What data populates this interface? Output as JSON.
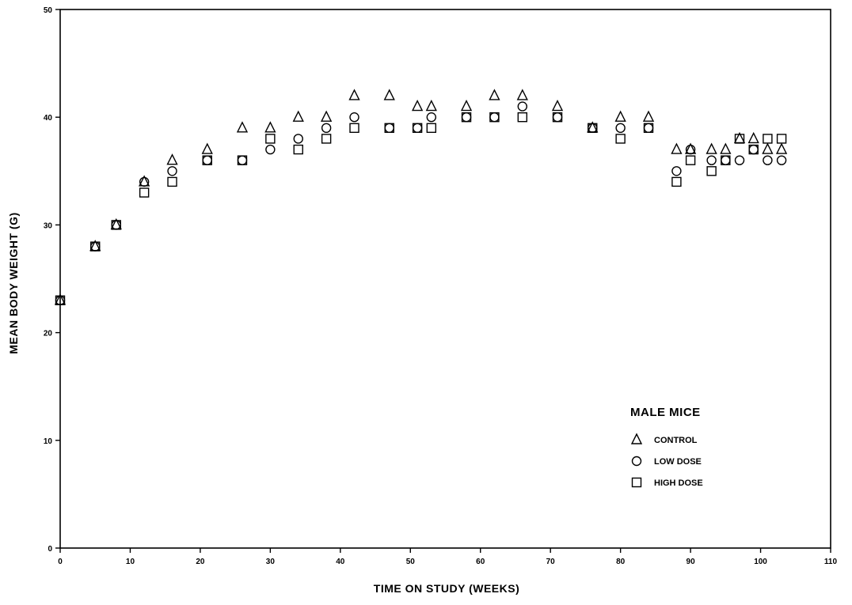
{
  "chart_data": {
    "type": "scatter",
    "title": "",
    "xlabel": "TIME ON STUDY (WEEKS)",
    "ylabel": "MEAN BODY WEIGHT (G)",
    "xlim": [
      0,
      110
    ],
    "ylim": [
      0,
      50
    ],
    "xticks": [
      0,
      10,
      20,
      30,
      40,
      50,
      60,
      70,
      80,
      90,
      100,
      110
    ],
    "yticks": [
      0,
      10,
      20,
      30,
      40,
      50
    ],
    "grid": false,
    "legend": {
      "title": "MALE MICE",
      "placement": "right-middle"
    },
    "series": [
      {
        "name": "CONTROL",
        "marker": "triangle",
        "points": [
          [
            0,
            23
          ],
          [
            5,
            28
          ],
          [
            8,
            30
          ],
          [
            12,
            34
          ],
          [
            16,
            36
          ],
          [
            21,
            37
          ],
          [
            26,
            39
          ],
          [
            30,
            39
          ],
          [
            34,
            40
          ],
          [
            38,
            40
          ],
          [
            42,
            42
          ],
          [
            47,
            42
          ],
          [
            51,
            41
          ],
          [
            53,
            41
          ],
          [
            58,
            41
          ],
          [
            62,
            42
          ],
          [
            66,
            42
          ],
          [
            71,
            41
          ],
          [
            76,
            39
          ],
          [
            80,
            40
          ],
          [
            84,
            40
          ],
          [
            88,
            37
          ],
          [
            90,
            37
          ],
          [
            93,
            37
          ],
          [
            95,
            37
          ],
          [
            97,
            38
          ],
          [
            99,
            38
          ],
          [
            101,
            37
          ],
          [
            103,
            37
          ]
        ]
      },
      {
        "name": "LOW DOSE",
        "marker": "circle",
        "points": [
          [
            0,
            23
          ],
          [
            5,
            28
          ],
          [
            8,
            30
          ],
          [
            12,
            34
          ],
          [
            16,
            35
          ],
          [
            21,
            36
          ],
          [
            26,
            36
          ],
          [
            30,
            37
          ],
          [
            34,
            38
          ],
          [
            38,
            39
          ],
          [
            42,
            40
          ],
          [
            47,
            39
          ],
          [
            51,
            39
          ],
          [
            53,
            40
          ],
          [
            58,
            40
          ],
          [
            62,
            40
          ],
          [
            66,
            41
          ],
          [
            71,
            40
          ],
          [
            76,
            39
          ],
          [
            80,
            39
          ],
          [
            84,
            39
          ],
          [
            88,
            35
          ],
          [
            90,
            37
          ],
          [
            93,
            36
          ],
          [
            95,
            36
          ],
          [
            97,
            36
          ],
          [
            99,
            37
          ],
          [
            101,
            36
          ],
          [
            103,
            36
          ]
        ]
      },
      {
        "name": "HIGH DOSE",
        "marker": "square",
        "points": [
          [
            0,
            23
          ],
          [
            5,
            28
          ],
          [
            8,
            30
          ],
          [
            12,
            33
          ],
          [
            16,
            34
          ],
          [
            21,
            36
          ],
          [
            26,
            36
          ],
          [
            30,
            38
          ],
          [
            34,
            37
          ],
          [
            38,
            38
          ],
          [
            42,
            39
          ],
          [
            47,
            39
          ],
          [
            51,
            39
          ],
          [
            53,
            39
          ],
          [
            58,
            40
          ],
          [
            62,
            40
          ],
          [
            66,
            40
          ],
          [
            71,
            40
          ],
          [
            76,
            39
          ],
          [
            80,
            38
          ],
          [
            84,
            39
          ],
          [
            88,
            34
          ],
          [
            90,
            36
          ],
          [
            93,
            35
          ],
          [
            95,
            36
          ],
          [
            97,
            38
          ],
          [
            99,
            37
          ],
          [
            101,
            38
          ],
          [
            103,
            38
          ]
        ]
      }
    ]
  }
}
